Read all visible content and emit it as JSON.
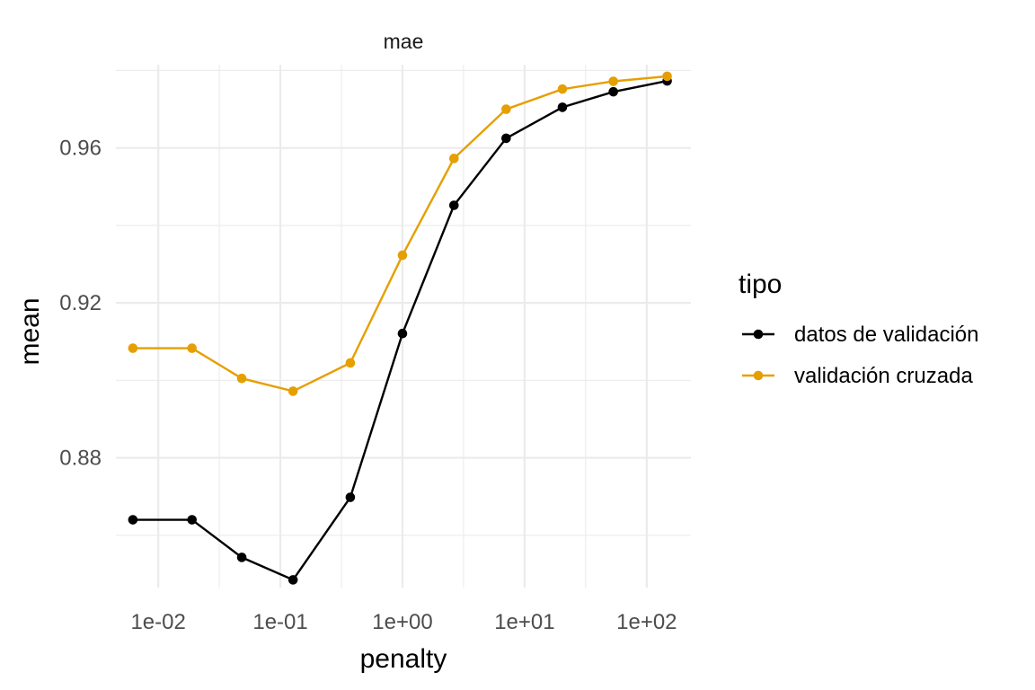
{
  "chart_data": {
    "type": "line",
    "facet_label": "mae",
    "xlabel": "penalty",
    "ylabel": "mean",
    "x_scale": "log10",
    "xlim": [
      0.0045,
      230
    ],
    "ylim": [
      0.8465,
      0.9815
    ],
    "x_ticks": [
      {
        "value": 0.01,
        "label": "1e-02"
      },
      {
        "value": 0.1,
        "label": "1e-01"
      },
      {
        "value": 1,
        "label": "1e+00"
      },
      {
        "value": 10,
        "label": "1e+01"
      },
      {
        "value": 100,
        "label": "1e+02"
      }
    ],
    "x_minor_ticks": [
      0.0316,
      0.316,
      3.16,
      31.6
    ],
    "y_ticks": [
      {
        "value": 0.88,
        "label": "0.88"
      },
      {
        "value": 0.92,
        "label": "0.92"
      },
      {
        "value": 0.96,
        "label": "0.96"
      }
    ],
    "y_minor_ticks": [
      0.86,
      0.9,
      0.94,
      0.98
    ],
    "grid": true,
    "legend": {
      "title": "tipo",
      "position": "right"
    },
    "series": [
      {
        "name": "datos de validación",
        "color": "#000000",
        "points": [
          {
            "x": 0.0062,
            "y": 0.864
          },
          {
            "x": 0.0189,
            "y": 0.864
          },
          {
            "x": 0.0483,
            "y": 0.8543
          },
          {
            "x": 0.127,
            "y": 0.8485
          },
          {
            "x": 0.374,
            "y": 0.8698
          },
          {
            "x": 1.0,
            "y": 0.9121
          },
          {
            "x": 2.64,
            "y": 0.9452
          },
          {
            "x": 7.06,
            "y": 0.9625
          },
          {
            "x": 20.4,
            "y": 0.9705
          },
          {
            "x": 53.3,
            "y": 0.9745
          },
          {
            "x": 147,
            "y": 0.9773
          }
        ]
      },
      {
        "name": "validación cruzada",
        "color": "#E69F00",
        "points": [
          {
            "x": 0.0062,
            "y": 0.9083
          },
          {
            "x": 0.0189,
            "y": 0.9083
          },
          {
            "x": 0.0483,
            "y": 0.9005
          },
          {
            "x": 0.127,
            "y": 0.8972
          },
          {
            "x": 0.374,
            "y": 0.9045
          },
          {
            "x": 1.0,
            "y": 0.9323
          },
          {
            "x": 2.64,
            "y": 0.9573
          },
          {
            "x": 7.06,
            "y": 0.97
          },
          {
            "x": 20.4,
            "y": 0.9752
          },
          {
            "x": 53.3,
            "y": 0.9772
          },
          {
            "x": 147,
            "y": 0.9785
          }
        ]
      }
    ]
  }
}
